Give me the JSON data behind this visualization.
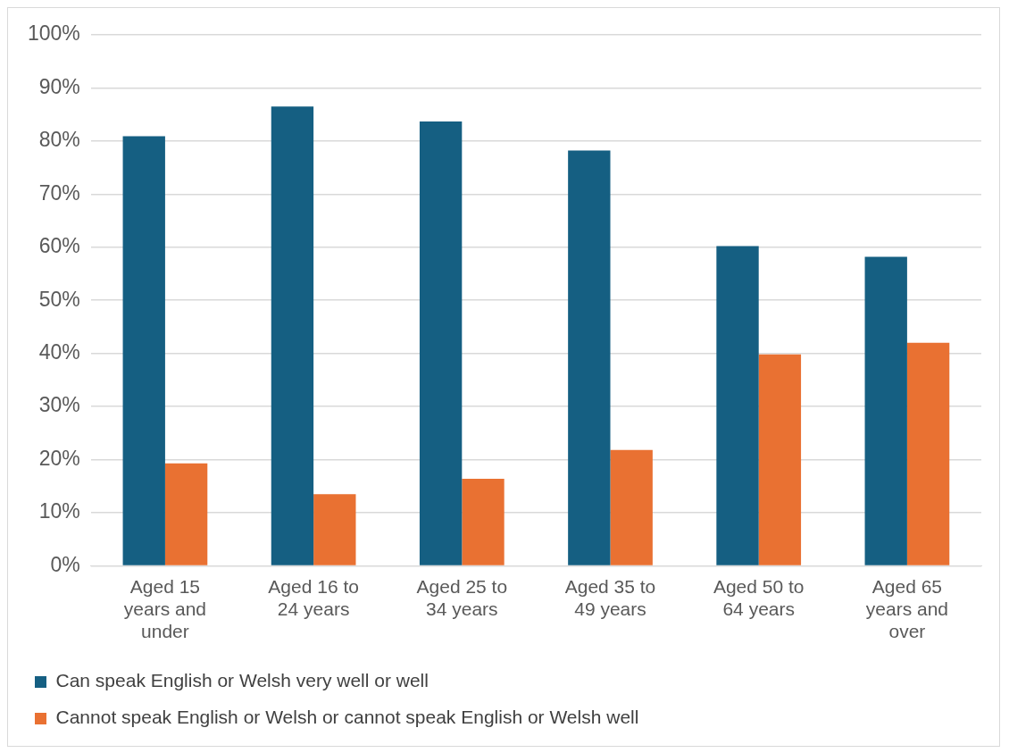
{
  "chart_data": {
    "type": "bar",
    "categories": [
      "Aged 15 years and under",
      "Aged 16 to 24 years",
      "Aged 25 to 34 years",
      "Aged 35 to 49 years",
      "Aged 50 to 64 years",
      "Aged 65 years and over"
    ],
    "series": [
      {
        "name": "Can speak English or Welsh very well or well",
        "color": "#155f82",
        "values": [
          80.9,
          86.5,
          83.7,
          78.2,
          60.2,
          58.2
        ]
      },
      {
        "name": "Cannot speak English or Welsh or cannot speak English or Welsh well",
        "color": "#e97132",
        "values": [
          19.3,
          13.5,
          16.4,
          21.8,
          39.8,
          42.0
        ]
      }
    ],
    "ylim": [
      0,
      100
    ],
    "yticks": [
      {
        "value": 0,
        "label": "0%"
      },
      {
        "value": 10,
        "label": "10%"
      },
      {
        "value": 20,
        "label": "20%"
      },
      {
        "value": 30,
        "label": "30%"
      },
      {
        "value": 40,
        "label": "40%"
      },
      {
        "value": 50,
        "label": "50%"
      },
      {
        "value": 60,
        "label": "60%"
      },
      {
        "value": 70,
        "label": "70%"
      },
      {
        "value": 80,
        "label": "80%"
      },
      {
        "value": 90,
        "label": "90%"
      },
      {
        "value": 100,
        "label": "100%"
      }
    ],
    "grid": "y",
    "legend": "bottom"
  }
}
